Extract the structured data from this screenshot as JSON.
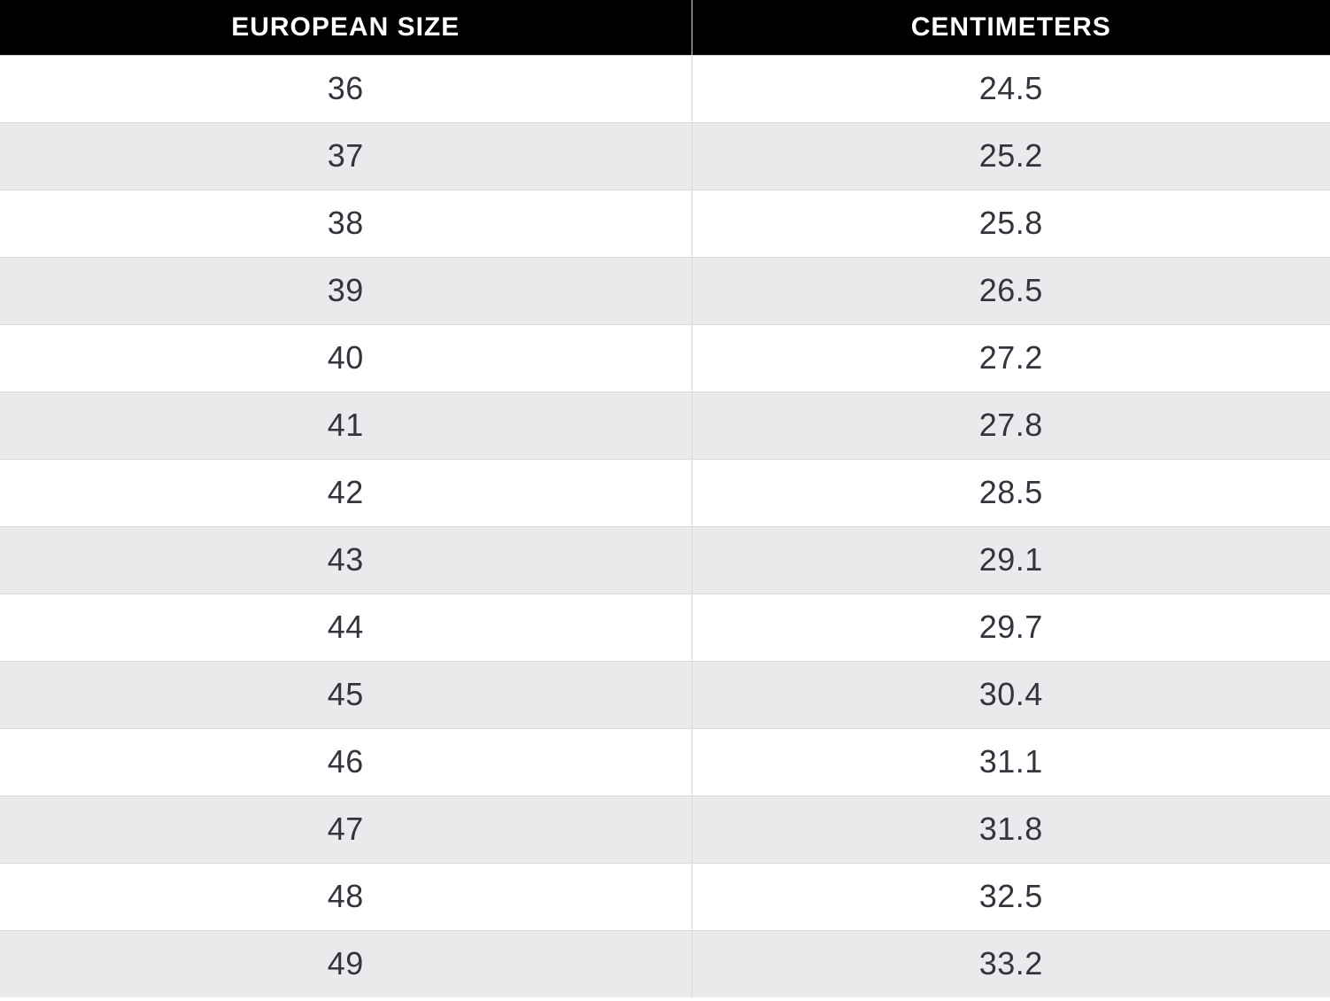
{
  "chart_data": {
    "type": "table",
    "title": "",
    "columns": [
      "EUROPEAN SIZE",
      "CENTIMETERS"
    ],
    "rows": [
      [
        "36",
        "24.5"
      ],
      [
        "37",
        "25.2"
      ],
      [
        "38",
        "25.8"
      ],
      [
        "39",
        "26.5"
      ],
      [
        "40",
        "27.2"
      ],
      [
        "41",
        "27.8"
      ],
      [
        "42",
        "28.5"
      ],
      [
        "43",
        "29.1"
      ],
      [
        "44",
        "29.7"
      ],
      [
        "45",
        "30.4"
      ],
      [
        "46",
        "31.1"
      ],
      [
        "47",
        "31.8"
      ],
      [
        "48",
        "32.5"
      ],
      [
        "49",
        "33.2"
      ]
    ],
    "layout": {
      "zebra_striping": true,
      "first_data_row_background": "white",
      "header_style": "black-bar-white-bold-uppercase"
    }
  },
  "colors": {
    "header_bg": "#000000",
    "header_text": "#ffffff",
    "row_bg": "#ffffff",
    "row_alt_bg": "#eaeaec",
    "border": "#d8d8da",
    "cell_text": "#34343e"
  }
}
